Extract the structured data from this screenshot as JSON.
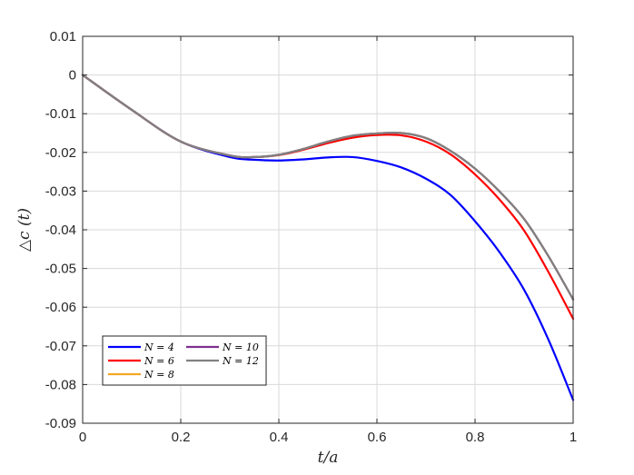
{
  "chart_data": {
    "type": "line",
    "xlabel": "t/a",
    "ylabel": "△c (t)",
    "xlim": [
      0,
      1
    ],
    "ylim": [
      -0.09,
      0.01
    ],
    "x_ticks": [
      0,
      0.2,
      0.4,
      0.6,
      0.8,
      1
    ],
    "x_tick_labels": [
      "0",
      "0.2",
      "0.4",
      "0.6",
      "0.8",
      "1"
    ],
    "y_ticks": [
      0.01,
      0,
      -0.01,
      -0.02,
      -0.03,
      -0.04,
      -0.05,
      -0.06,
      -0.07,
      -0.08,
      -0.09
    ],
    "y_tick_labels": [
      "0.01",
      "0",
      "-0.01",
      "-0.02",
      "-0.03",
      "-0.04",
      "-0.05",
      "-0.06",
      "-0.07",
      "-0.08",
      "-0.09"
    ],
    "grid": true,
    "legend_position": "bottom-left",
    "legend_columns": 2,
    "x": [
      0,
      0.1,
      0.2,
      0.3,
      0.35,
      0.4,
      0.45,
      0.5,
      0.55,
      0.6,
      0.65,
      0.7,
      0.75,
      0.8,
      0.85,
      0.9,
      0.95,
      1.0
    ],
    "series": [
      {
        "name": "N = 4",
        "color": "#0000ff",
        "values": [
          0,
          -0.009,
          -0.0172,
          -0.0212,
          -0.0219,
          -0.0221,
          -0.0218,
          -0.0213,
          -0.0212,
          -0.0222,
          -0.0239,
          -0.0268,
          -0.031,
          -0.0378,
          -0.0458,
          -0.0555,
          -0.0685,
          -0.084
        ]
      },
      {
        "name": "N = 6",
        "color": "#ff0000",
        "values": [
          0,
          -0.009,
          -0.0172,
          -0.0208,
          -0.0212,
          -0.0207,
          -0.0193,
          -0.0176,
          -0.0162,
          -0.0155,
          -0.0156,
          -0.0172,
          -0.0205,
          -0.0257,
          -0.0322,
          -0.0402,
          -0.051,
          -0.063
        ]
      },
      {
        "name": "N = 8",
        "color": "#f5a623",
        "values": [
          0,
          -0.009,
          -0.0172,
          -0.0208,
          -0.0212,
          -0.0206,
          -0.0191,
          -0.0172,
          -0.0157,
          -0.0151,
          -0.015,
          -0.0163,
          -0.0196,
          -0.0242,
          -0.0301,
          -0.0372,
          -0.0469,
          -0.058
        ]
      },
      {
        "name": "N = 10",
        "color": "#7e2f8e",
        "values": [
          0,
          -0.009,
          -0.0172,
          -0.0208,
          -0.0212,
          -0.0206,
          -0.0191,
          -0.0172,
          -0.0157,
          -0.0151,
          -0.015,
          -0.0163,
          -0.0196,
          -0.0242,
          -0.0301,
          -0.0372,
          -0.0469,
          -0.058
        ]
      },
      {
        "name": "N = 12",
        "color": "#808080",
        "values": [
          0,
          -0.009,
          -0.0172,
          -0.0208,
          -0.0212,
          -0.0206,
          -0.0191,
          -0.0172,
          -0.0157,
          -0.0151,
          -0.015,
          -0.0163,
          -0.0196,
          -0.0242,
          -0.0301,
          -0.0372,
          -0.0469,
          -0.058
        ]
      }
    ]
  }
}
